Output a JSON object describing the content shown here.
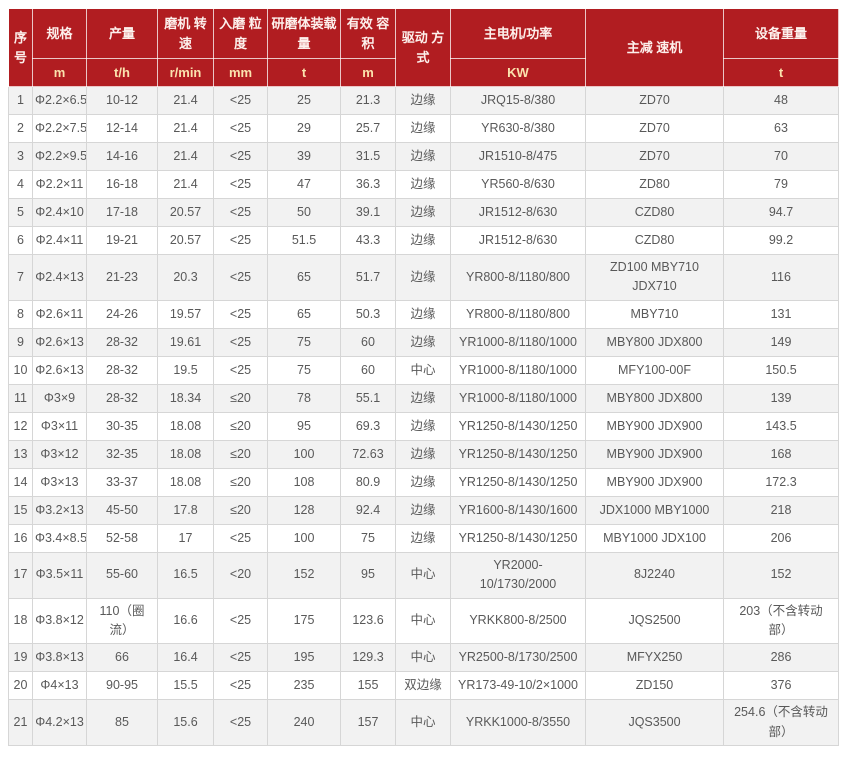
{
  "table": {
    "columns": [
      {
        "id": "index",
        "label": "序号",
        "unit": null
      },
      {
        "id": "spec",
        "label": "规格",
        "unit": "m"
      },
      {
        "id": "output",
        "label": "产量",
        "unit": "t/h"
      },
      {
        "id": "mill-speed",
        "label": "磨机 转速",
        "unit": "r/min"
      },
      {
        "id": "feed-size",
        "label": "入磨 粒度",
        "unit": "mm"
      },
      {
        "id": "media-load",
        "label": "研磨体装载量",
        "unit": "t"
      },
      {
        "id": "volume",
        "label": "有效 容积",
        "unit": "m"
      },
      {
        "id": "drive-mode",
        "label": "驱动 方式",
        "unit": null
      },
      {
        "id": "motor",
        "label": "主电机/功率",
        "unit": "KW"
      },
      {
        "id": "reducer",
        "label": "主减 速机",
        "unit": null
      },
      {
        "id": "weight",
        "label": "设备重量",
        "unit": "t"
      }
    ],
    "rows": [
      [
        "1",
        "Φ2.2×6.5",
        "10-12",
        "21.4",
        "<25",
        "25",
        "21.3",
        "边缘",
        "JRQ15-8/380",
        "ZD70",
        "48"
      ],
      [
        "2",
        "Φ2.2×7.5",
        "12-14",
        "21.4",
        "<25",
        "29",
        "25.7",
        "边缘",
        "YR630-8/380",
        "ZD70",
        "63"
      ],
      [
        "3",
        "Φ2.2×9.5",
        "14-16",
        "21.4",
        "<25",
        "39",
        "31.5",
        "边缘",
        "JR1510-8/475",
        "ZD70",
        "70"
      ],
      [
        "4",
        "Φ2.2×11",
        "16-18",
        "21.4",
        "<25",
        "47",
        "36.3",
        "边缘",
        "YR560-8/630",
        "ZD80",
        "79"
      ],
      [
        "5",
        "Φ2.4×10",
        "17-18",
        "20.57",
        "<25",
        "50",
        "39.1",
        "边缘",
        "JR1512-8/630",
        "CZD80",
        "94.7"
      ],
      [
        "6",
        "Φ2.4×11",
        "19-21",
        "20.57",
        "<25",
        "51.5",
        "43.3",
        "边缘",
        "JR1512-8/630",
        "CZD80",
        "99.2"
      ],
      [
        "7",
        "Φ2.4×13",
        "21-23",
        "20.3",
        "<25",
        "65",
        "51.7",
        "边缘",
        "YR800-8/1180/800",
        "ZD100 MBY710\nJDX710",
        "116"
      ],
      [
        "8",
        "Φ2.6×11",
        "24-26",
        "19.57",
        "<25",
        "65",
        "50.3",
        "边缘",
        "YR800-8/1180/800",
        "MBY710",
        "131"
      ],
      [
        "9",
        "Φ2.6×13",
        "28-32",
        "19.61",
        "<25",
        "75",
        "60",
        "边缘",
        "YR1000-8/1180/1000",
        "MBY800 JDX800",
        "149"
      ],
      [
        "10",
        "Φ2.6×13",
        "28-32",
        "19.5",
        "<25",
        "75",
        "60",
        "中心",
        "YR1000-8/1180/1000",
        "MFY100-00F",
        "150.5"
      ],
      [
        "11",
        "Φ3×9",
        "28-32",
        "18.34",
        "≤20",
        "78",
        "55.1",
        "边缘",
        "YR1000-8/1180/1000",
        "MBY800 JDX800",
        "139"
      ],
      [
        "12",
        "Φ3×11",
        "30-35",
        "18.08",
        "≤20",
        "95",
        "69.3",
        "边缘",
        "YR1250-8/1430/1250",
        "MBY900 JDX900",
        "143.5"
      ],
      [
        "13",
        "Φ3×12",
        "32-35",
        "18.08",
        "≤20",
        "100",
        "72.63",
        "边缘",
        "YR1250-8/1430/1250",
        "MBY900 JDX900",
        "168"
      ],
      [
        "14",
        "Φ3×13",
        "33-37",
        "18.08",
        "≤20",
        "108",
        "80.9",
        "边缘",
        "YR1250-8/1430/1250",
        "MBY900 JDX900",
        "172.3"
      ],
      [
        "15",
        "Φ3.2×13",
        "45-50",
        "17.8",
        "≤20",
        "128",
        "92.4",
        "边缘",
        "YR1600-8/1430/1600",
        "JDX1000 MBY1000",
        "218"
      ],
      [
        "16",
        "Φ3.4×8.5",
        "52-58",
        "17",
        "<25",
        "100",
        "75",
        "边缘",
        "YR1250-8/1430/1250",
        "MBY1000 JDX100",
        "206"
      ],
      [
        "17",
        "Φ3.5×11",
        "55-60",
        "16.5",
        "<20",
        "152",
        "95",
        "中心",
        "YR2000-\n10/1730/2000",
        "8J2240",
        "152"
      ],
      [
        "18",
        "Φ3.8×12",
        "110（圈\n流）",
        "16.6",
        "<25",
        "175",
        "123.6",
        "中心",
        "YRKK800-8/2500",
        "JQS2500",
        "203（不含转动\n部）"
      ],
      [
        "19",
        "Φ3.8×13",
        "66",
        "16.4",
        "<25",
        "195",
        "129.3",
        "中心",
        "YR2500-8/1730/2500",
        "MFYX250",
        "286"
      ],
      [
        "20",
        "Φ4×13",
        "90-95",
        "15.5",
        "<25",
        "235",
        "155",
        "双边缘",
        "YR173-49-10/2×1000",
        "ZD150",
        "376"
      ],
      [
        "21",
        "Φ4.2×13",
        "85",
        "15.6",
        "<25",
        "240",
        "157",
        "中心",
        "YRKK1000-8/3550",
        "JQS3500",
        "254.6（不含转动\n部）"
      ]
    ],
    "style": {
      "header_bg": "#b11d21",
      "header_text": "#fdf0ec",
      "unit_text": "#fbe3ae",
      "row_odd_bg": "#f2f2f2",
      "row_even_bg": "#ffffff",
      "body_text": "#595959",
      "border": "#d6d6d6"
    }
  }
}
